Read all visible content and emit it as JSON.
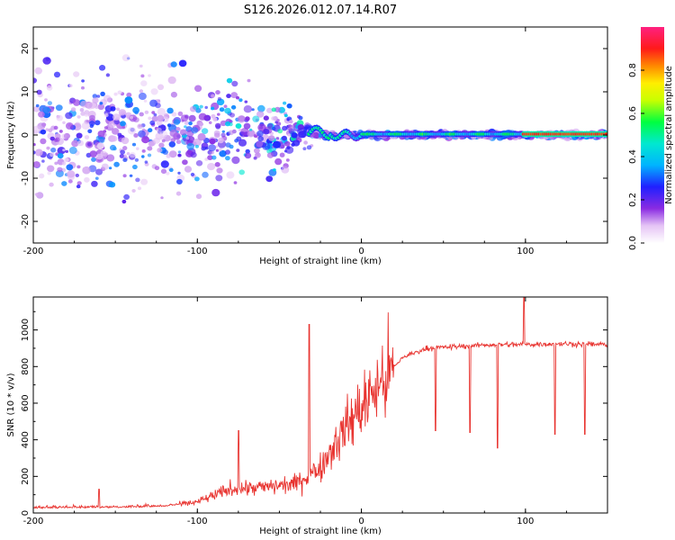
{
  "title": "S126.2026.012.07.14.R07",
  "chart_data": [
    {
      "type": "heatmap",
      "xlabel": "Height of straight line (km)",
      "ylabel": "Frequency (Hz)",
      "xlim": [
        -200,
        150
      ],
      "ylim": [
        -25,
        25
      ],
      "xticks": [
        -200,
        -100,
        0,
        100
      ],
      "yticks": [
        -20,
        -10,
        0,
        10,
        20
      ],
      "colorbar": {
        "label": "Normalized spectral amplitude",
        "range": [
          0.0,
          1.0
        ],
        "ticks": [
          "0.0",
          "0.2",
          "0.4",
          "0.6",
          "0.8"
        ],
        "tick_values": [
          0.0,
          0.2,
          0.4,
          0.6,
          0.8
        ]
      },
      "features": [
        {
          "x_range": [
            -200,
            -110
          ],
          "description": "broad diffuse scatter",
          "amplitude": 0.15
        },
        {
          "x_range": [
            -110,
            -30
          ],
          "description": "converging scatter",
          "amplitude": 0.3
        },
        {
          "x_range": [
            -30,
            150
          ],
          "description": "narrow band near 0 Hz",
          "amplitude": 0.6
        },
        {
          "x_range": [
            100,
            150
          ],
          "description": "peak band near 0 Hz",
          "amplitude": 0.9
        }
      ]
    },
    {
      "type": "line",
      "xlabel": "Height of straight line (km)",
      "ylabel": "SNR (10 * v/v)",
      "xlim": [
        -200,
        150
      ],
      "ylim": [
        0,
        1180
      ],
      "xticks": [
        -200,
        -100,
        0,
        100
      ],
      "yticks": [
        0,
        200,
        400,
        600,
        800,
        1000
      ],
      "series": [
        {
          "name": "SNR",
          "color": "#e8332f",
          "trend": {
            "x": [
              -200,
              -150,
              -120,
              -100,
              -80,
              -60,
              -40,
              -25,
              -15,
              0,
              15,
              25,
              40,
              60,
              80,
              100,
              120,
              150
            ],
            "y": [
              25,
              28,
              35,
              60,
              130,
              140,
              160,
              250,
              400,
              580,
              740,
              850,
              900,
              910,
              920,
              920,
              925,
              920
            ]
          },
          "spikes": [
            {
              "x": -160,
              "y": 130
            },
            {
              "x": -75,
              "y": 450
            },
            {
              "x": -32,
              "y": 1030
            },
            {
              "x": 45,
              "y": 450
            },
            {
              "x": 66,
              "y": 440
            },
            {
              "x": 83,
              "y": 355
            },
            {
              "x": 99,
              "y": 1190
            },
            {
              "x": 118,
              "y": 430
            },
            {
              "x": 136,
              "y": 430
            }
          ]
        }
      ]
    }
  ]
}
